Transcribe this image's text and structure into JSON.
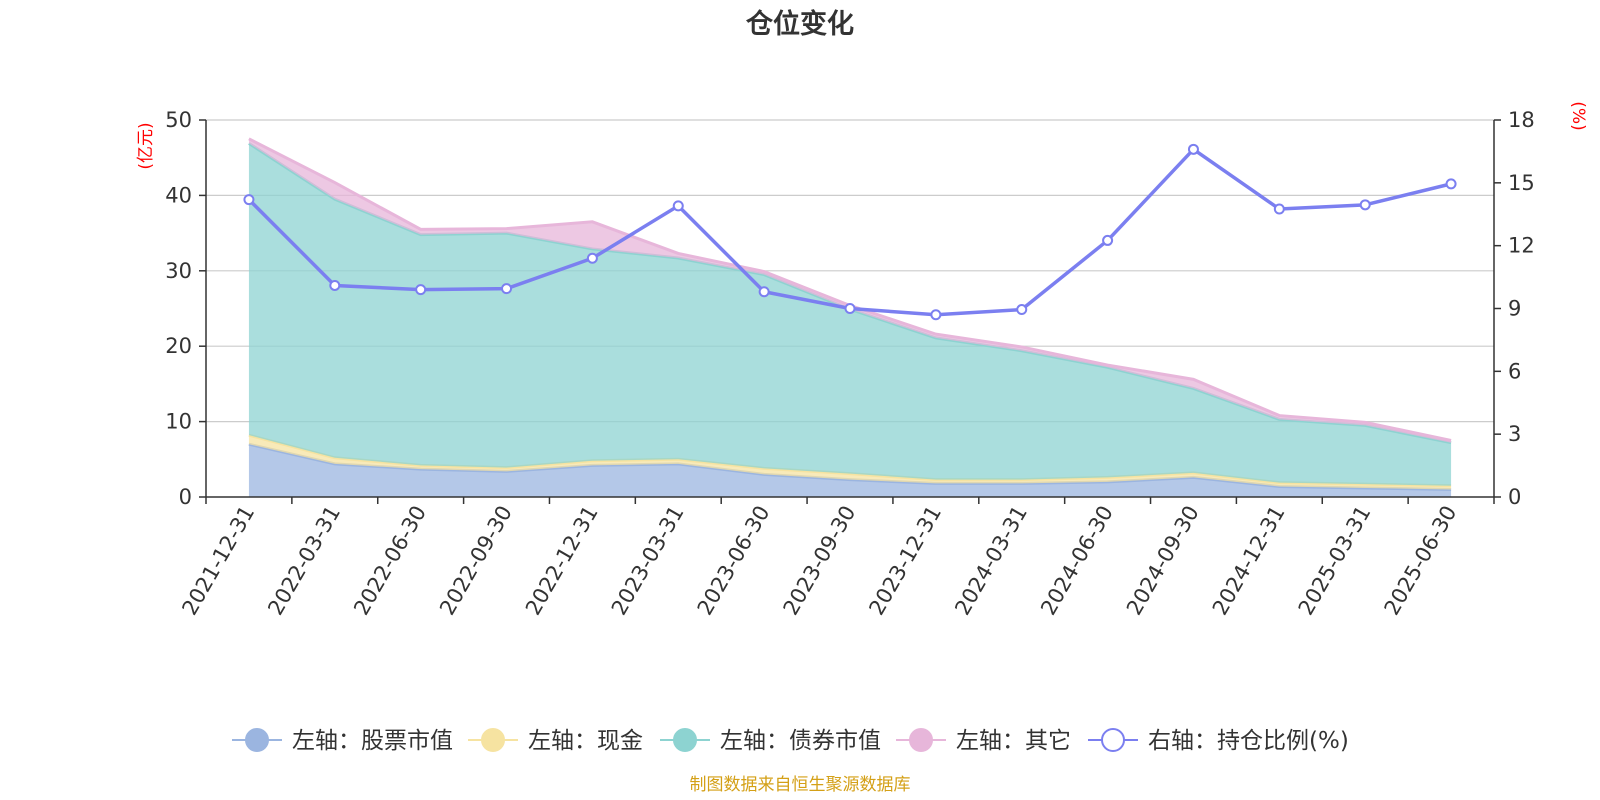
{
  "chart_data": {
    "type": "area",
    "title": "仓位变化",
    "left_unit": "(亿元)",
    "right_unit": "(%)",
    "categories": [
      "2021-12-31",
      "2022-03-31",
      "2022-06-30",
      "2022-09-30",
      "2022-12-31",
      "2023-03-31",
      "2023-06-30",
      "2023-09-30",
      "2023-12-31",
      "2024-03-31",
      "2024-06-30",
      "2024-09-30",
      "2024-12-31",
      "2025-03-31",
      "2025-06-30"
    ],
    "left_axis": {
      "min": 0,
      "max": 50,
      "ticks": [
        "0",
        "10",
        "20",
        "30",
        "40",
        "50"
      ]
    },
    "right_axis": {
      "min": 0,
      "max": 18,
      "ticks": [
        "0",
        "3",
        "6",
        "9",
        "12",
        "15",
        "18"
      ]
    },
    "stacked_series": [
      {
        "name": "左轴：股票市值",
        "color": "#9bb5e0",
        "values": [
          7.0,
          4.4,
          3.7,
          3.4,
          4.2,
          4.4,
          3.0,
          2.3,
          1.8,
          1.8,
          2.0,
          2.6,
          1.4,
          1.2,
          1.0
        ]
      },
      {
        "name": "左轴：现金",
        "color": "#f6e3a1",
        "values": [
          1.2,
          0.8,
          0.5,
          0.5,
          0.6,
          0.6,
          0.8,
          0.8,
          0.5,
          0.5,
          0.6,
          0.6,
          0.5,
          0.5,
          0.5
        ]
      },
      {
        "name": "左轴：债券市值",
        "color": "#8dd3d1",
        "values": [
          38.7,
          34.3,
          30.6,
          31.1,
          28.1,
          26.7,
          25.7,
          21.8,
          18.8,
          17.1,
          14.6,
          11.2,
          8.4,
          7.8,
          5.7
        ]
      },
      {
        "name": "左轴：其它",
        "color": "#e7b6da",
        "values": [
          0.6,
          2.2,
          0.7,
          0.6,
          3.6,
          0.6,
          0.4,
          0.5,
          0.5,
          0.5,
          0.3,
          1.2,
          0.5,
          0.4,
          0.3
        ]
      }
    ],
    "line_series": {
      "name": "右轴：持仓比例(%)",
      "color": "#7b7ff0",
      "axis": "right",
      "values": [
        14.2,
        10.1,
        9.9,
        9.95,
        11.4,
        13.9,
        9.8,
        9.0,
        8.7,
        8.95,
        12.25,
        16.6,
        13.75,
        13.95,
        14.95
      ]
    },
    "legend_position": "bottom",
    "grid": true
  },
  "source": "制图数据来自恒生聚源数据库",
  "colors": {
    "unit_red": "#ff0000",
    "source_gold": "#d4a017",
    "axis": "#333333",
    "grid": "#cccccc"
  }
}
